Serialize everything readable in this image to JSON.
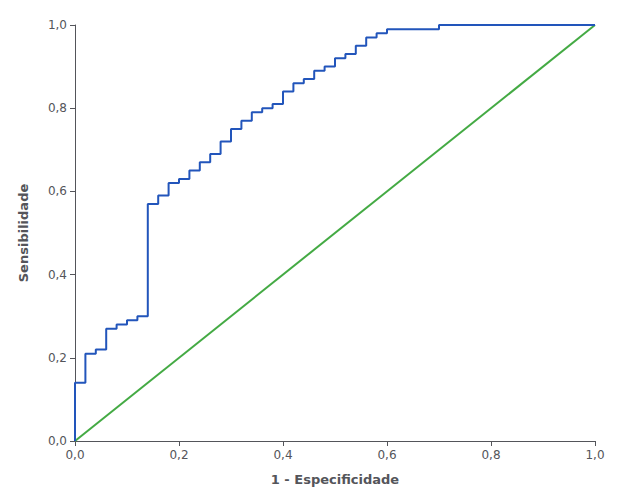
{
  "chart_data": {
    "type": "line",
    "xlabel": "1 - Especificidade",
    "ylabel": "Sensibilidade",
    "series": [
      {
        "color": "#44aa44",
        "x": [
          0.0,
          1.0
        ],
        "values": [
          0.0,
          1.0
        ]
      },
      {
        "color": "#2255bb",
        "x": [
          0.0,
          0.0,
          0.02,
          0.02,
          0.04,
          0.04,
          0.06,
          0.06,
          0.08,
          0.08,
          0.1,
          0.1,
          0.12,
          0.12,
          0.14,
          0.14,
          0.16,
          0.16,
          0.18,
          0.18,
          0.2,
          0.2,
          0.22,
          0.22,
          0.24,
          0.24,
          0.26,
          0.26,
          0.28,
          0.28,
          0.3,
          0.3,
          0.32,
          0.32,
          0.34,
          0.34,
          0.36,
          0.36,
          0.38,
          0.38,
          0.4,
          0.4,
          0.42,
          0.42,
          0.44,
          0.44,
          0.46,
          0.46,
          0.48,
          0.48,
          0.5,
          0.5,
          0.52,
          0.52,
          0.54,
          0.54,
          0.56,
          0.56,
          0.58,
          0.58,
          0.6,
          0.6,
          0.65,
          0.65,
          0.7,
          0.7,
          0.8,
          0.8,
          0.9,
          0.9,
          1.0,
          1.0
        ],
        "values": [
          0.0,
          0.14,
          0.14,
          0.21,
          0.21,
          0.22,
          0.22,
          0.27,
          0.27,
          0.28,
          0.28,
          0.29,
          0.29,
          0.3,
          0.3,
          0.57,
          0.57,
          0.59,
          0.59,
          0.62,
          0.62,
          0.63,
          0.63,
          0.65,
          0.65,
          0.67,
          0.67,
          0.69,
          0.69,
          0.72,
          0.72,
          0.75,
          0.75,
          0.77,
          0.77,
          0.79,
          0.79,
          0.8,
          0.8,
          0.81,
          0.81,
          0.84,
          0.84,
          0.86,
          0.86,
          0.87,
          0.87,
          0.89,
          0.89,
          0.9,
          0.9,
          0.92,
          0.92,
          0.93,
          0.93,
          0.95,
          0.95,
          0.97,
          0.97,
          0.98,
          0.98,
          0.99,
          0.99,
          0.99,
          0.99,
          1.0,
          1.0,
          1.0,
          1.0,
          1.0,
          1.0,
          1.0
        ]
      }
    ],
    "xlim": [
      0.0,
      1.0
    ],
    "ylim": [
      0.0,
      1.0
    ],
    "xticks": [
      {
        "value": 0.0,
        "label": "0,0"
      },
      {
        "value": 0.2,
        "label": "0,2"
      },
      {
        "value": 0.4,
        "label": "0,4"
      },
      {
        "value": 0.6,
        "label": "0,6"
      },
      {
        "value": 0.8,
        "label": "0,8"
      },
      {
        "value": 1.0,
        "label": "1,0"
      }
    ],
    "yticks": [
      {
        "value": 0.0,
        "label": "0,0"
      },
      {
        "value": 0.2,
        "label": "0,2"
      },
      {
        "value": 0.4,
        "label": "0,4"
      },
      {
        "value": 0.6,
        "label": "0,6"
      },
      {
        "value": 0.8,
        "label": "0,8"
      },
      {
        "value": 1.0,
        "label": "1,0"
      }
    ],
    "grid": false
  }
}
